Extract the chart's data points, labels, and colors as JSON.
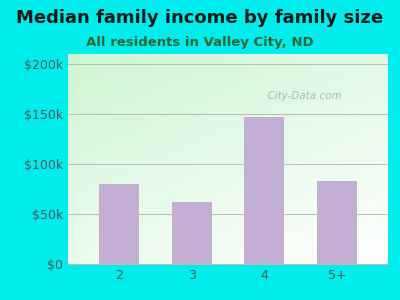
{
  "categories": [
    "2",
    "3",
    "4",
    "5+"
  ],
  "values": [
    80000,
    62000,
    147000,
    83000
  ],
  "bar_color": "#c4afd4",
  "background_color": "#00eded",
  "title": "Median family income by family size",
  "subtitle": "All residents in Valley City, ND",
  "title_color": "#1a1a1a",
  "subtitle_color": "#336633",
  "ytick_labels": [
    "$0",
    "$50k",
    "$100k",
    "$150k",
    "$200k"
  ],
  "ytick_values": [
    0,
    50000,
    100000,
    150000,
    200000
  ],
  "ylim": [
    0,
    210000
  ],
  "grid_color": "#bbbbbb",
  "tick_color": "#555555",
  "watermark": "City-Data.com",
  "title_fontsize": 13,
  "subtitle_fontsize": 9.5,
  "tick_fontsize": 9,
  "bar_width": 0.55
}
